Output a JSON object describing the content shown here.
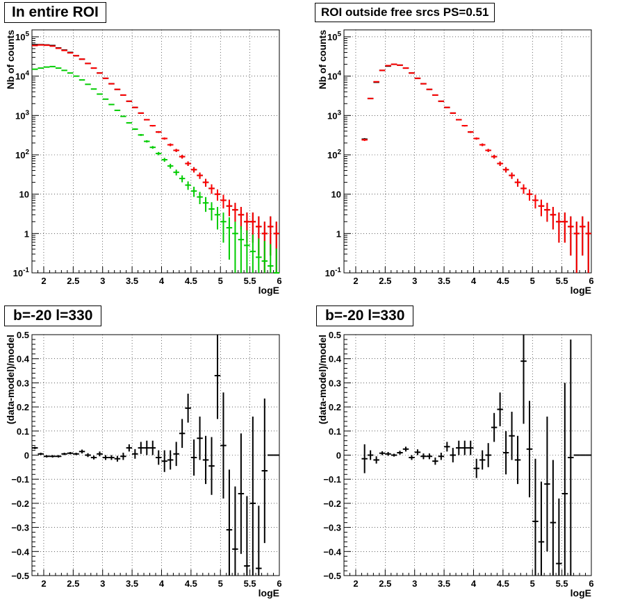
{
  "chart_data": [
    {
      "type": "scatter",
      "title": "In entire ROI",
      "xlabel": "logE",
      "ylabel": "Nb of counts",
      "xlim": [
        1.8,
        6.0
      ],
      "ylim": [
        0.1,
        150000
      ],
      "yscale": "log",
      "grid": true,
      "x_ticks": [
        "2",
        "2.5",
        "3",
        "3.5",
        "4",
        "4.5",
        "5",
        "5.5",
        "6"
      ],
      "y_ticks": [
        "10^-1",
        "1",
        "10",
        "10^2",
        "10^3",
        "10^4",
        "10^5"
      ],
      "series": [
        {
          "color": "#000000",
          "x": [
            1.85,
            1.95,
            2.05,
            2.15,
            2.25,
            2.35,
            2.45,
            2.55,
            2.65,
            2.75,
            2.85,
            2.95,
            3.05,
            3.15,
            3.25,
            3.35,
            3.45,
            3.55,
            3.65,
            3.75,
            3.85,
            3.95,
            4.05,
            4.15,
            4.25,
            4.35,
            4.45,
            4.55,
            4.65,
            4.75,
            4.85,
            4.95,
            5.05,
            5.15,
            5.25,
            5.35,
            5.45,
            5.55,
            5.65,
            5.75,
            5.85,
            5.95
          ],
          "y": [
            63000,
            63000,
            62000,
            60000,
            52000,
            46000,
            40000,
            33000,
            27000,
            21000,
            16000,
            12000,
            8800,
            6400,
            4600,
            3300,
            2300,
            1600,
            1150,
            780,
            550,
            380,
            260,
            180,
            130,
            90,
            60,
            42,
            30,
            20,
            14,
            10,
            7,
            5,
            4,
            3,
            2,
            2,
            1.5,
            1,
            1.5,
            1
          ]
        },
        {
          "color": "#ff0000",
          "x": [
            1.85,
            1.95,
            2.05,
            2.15,
            2.25,
            2.35,
            2.45,
            2.55,
            2.65,
            2.75,
            2.85,
            2.95,
            3.05,
            3.15,
            3.25,
            3.35,
            3.45,
            3.55,
            3.65,
            3.75,
            3.85,
            3.95,
            4.05,
            4.15,
            4.25,
            4.35,
            4.45,
            4.55,
            4.65,
            4.75,
            4.85,
            4.95,
            5.05,
            5.15,
            5.25,
            5.35,
            5.45,
            5.55,
            5.65,
            5.75,
            5.85,
            5.95
          ],
          "y": [
            60000,
            62000,
            61000,
            58000,
            51000,
            45000,
            39000,
            33000,
            27000,
            21000,
            16000,
            12000,
            8800,
            6400,
            4600,
            3300,
            2300,
            1600,
            1150,
            780,
            550,
            380,
            260,
            180,
            130,
            90,
            60,
            42,
            30,
            20,
            14,
            10,
            7,
            5,
            4,
            3,
            2,
            2,
            1.5,
            1,
            1.5,
            1
          ]
        },
        {
          "color": "#00cc00",
          "x": [
            1.85,
            1.95,
            2.05,
            2.15,
            2.25,
            2.35,
            2.45,
            2.55,
            2.65,
            2.75,
            2.85,
            2.95,
            3.05,
            3.15,
            3.25,
            3.35,
            3.45,
            3.55,
            3.65,
            3.75,
            3.85,
            3.95,
            4.05,
            4.15,
            4.25,
            4.35,
            4.45,
            4.55,
            4.65,
            4.75,
            4.85,
            4.95,
            5.05,
            5.15,
            5.25,
            5.35,
            5.45,
            5.55,
            5.65,
            5.75,
            5.85,
            5.95
          ],
          "y": [
            15000,
            16000,
            17000,
            17500,
            16000,
            14000,
            12000,
            10000,
            8000,
            6200,
            4700,
            3500,
            2600,
            1900,
            1350,
            950,
            650,
            450,
            320,
            220,
            155,
            108,
            75,
            52,
            36,
            25,
            17,
            12,
            8.5,
            6,
            4.2,
            3,
            2,
            1.4,
            1,
            0.7,
            0.5,
            0.35,
            0.25,
            0.2,
            0.15,
            0.1
          ]
        }
      ]
    },
    {
      "type": "scatter",
      "title": "ROI outside free srcs PS=0.51",
      "xlabel": "logE",
      "ylabel": "Nb of counts",
      "xlim": [
        1.8,
        6.0
      ],
      "ylim": [
        0.1,
        150000
      ],
      "yscale": "log",
      "grid": true,
      "x_ticks": [
        "2",
        "2.5",
        "3",
        "3.5",
        "4",
        "4.5",
        "5",
        "5.5",
        "6"
      ],
      "y_ticks": [
        "10^-1",
        "1",
        "10",
        "10^2",
        "10^3",
        "10^4",
        "10^5"
      ],
      "series": [
        {
          "color": "#000000",
          "x": [
            2.15,
            2.25,
            2.35,
            2.45,
            2.55,
            2.65,
            2.75,
            2.85,
            2.95,
            3.05,
            3.15,
            3.25,
            3.35,
            3.45,
            3.55,
            3.65,
            3.75,
            3.85,
            3.95,
            4.05,
            4.15,
            4.25,
            4.35,
            4.45,
            4.55,
            4.65,
            4.75,
            4.85,
            4.95,
            5.05,
            5.15,
            5.25,
            5.35,
            5.45,
            5.55,
            5.65,
            5.75,
            5.85,
            5.95
          ],
          "y": [
            250,
            2700,
            7000,
            14000,
            18000,
            20000,
            19000,
            16000,
            12000,
            8800,
            6400,
            4600,
            3300,
            2300,
            1600,
            1150,
            780,
            550,
            380,
            260,
            180,
            130,
            90,
            60,
            42,
            30,
            20,
            14,
            10,
            7,
            5,
            4,
            3,
            2,
            2,
            1.5,
            1,
            1.5,
            1
          ]
        },
        {
          "color": "#ff0000",
          "x": [
            2.15,
            2.25,
            2.35,
            2.45,
            2.55,
            2.65,
            2.75,
            2.85,
            2.95,
            3.05,
            3.15,
            3.25,
            3.35,
            3.45,
            3.55,
            3.65,
            3.75,
            3.85,
            3.95,
            4.05,
            4.15,
            4.25,
            4.35,
            4.45,
            4.55,
            4.65,
            4.75,
            4.85,
            4.95,
            5.05,
            5.15,
            5.25,
            5.35,
            5.45,
            5.55,
            5.65,
            5.75,
            5.85,
            5.95
          ],
          "y": [
            240,
            2700,
            7200,
            14000,
            18500,
            20000,
            19000,
            16000,
            12000,
            8800,
            6400,
            4600,
            3300,
            2300,
            1600,
            1150,
            780,
            550,
            380,
            260,
            180,
            130,
            90,
            60,
            42,
            30,
            20,
            14,
            10,
            7,
            5,
            4,
            3,
            2,
            2,
            1.5,
            1,
            1.5,
            1
          ]
        }
      ]
    },
    {
      "type": "scatter",
      "title": "b=-20 l=330",
      "xlabel": "logE",
      "ylabel": "(data-model)/model",
      "xlim": [
        1.8,
        6.0
      ],
      "ylim": [
        -0.5,
        0.5
      ],
      "grid": true,
      "x_ticks": [
        "2",
        "2.5",
        "3",
        "3.5",
        "4",
        "4.5",
        "5",
        "5.5",
        "6"
      ],
      "y_ticks": [
        "−0.5",
        "−0.4",
        "−0.3",
        "−0.2",
        "−0.1",
        "0",
        "0.1",
        "0.2",
        "0.3",
        "0.4",
        "0.5"
      ],
      "series": [
        {
          "color": "#000000",
          "x": [
            1.85,
            1.95,
            2.05,
            2.15,
            2.25,
            2.35,
            2.45,
            2.55,
            2.65,
            2.75,
            2.85,
            2.95,
            3.05,
            3.15,
            3.25,
            3.35,
            3.45,
            3.55,
            3.65,
            3.75,
            3.85,
            3.95,
            4.05,
            4.15,
            4.25,
            4.35,
            4.45,
            4.55,
            4.65,
            4.75,
            4.85,
            4.95,
            5.05,
            5.15,
            5.25,
            5.35,
            5.45,
            5.55,
            5.65,
            5.75,
            5.85,
            5.95
          ],
          "y": [
            0.03,
            0.005,
            -0.005,
            -0.005,
            -0.005,
            0.005,
            0.008,
            0.005,
            0.015,
            0.0,
            -0.01,
            0.005,
            -0.01,
            -0.01,
            -0.015,
            -0.005,
            0.03,
            0.005,
            0.03,
            0.03,
            0.03,
            -0.01,
            -0.025,
            -0.02,
            0.005,
            0.09,
            0.195,
            -0.01,
            0.07,
            -0.02,
            -0.045,
            0.33,
            0.04,
            -0.31,
            -0.39,
            -0.16,
            -0.46,
            -0.2,
            -0.47,
            -0.065,
            0.0,
            0.0
          ],
          "err": [
            0.005,
            0.005,
            0.005,
            0.005,
            0.005,
            0.005,
            0.005,
            0.005,
            0.008,
            0.008,
            0.008,
            0.01,
            0.01,
            0.01,
            0.012,
            0.015,
            0.015,
            0.02,
            0.025,
            0.03,
            0.03,
            0.03,
            0.045,
            0.04,
            0.05,
            0.06,
            0.06,
            0.075,
            0.09,
            0.1,
            0.12,
            0.18,
            0.22,
            0.25,
            0.26,
            0.25,
            0.29,
            0.36,
            0.26,
            0.3,
            0.0,
            0.0
          ]
        }
      ]
    },
    {
      "type": "scatter",
      "title": "b=-20 l=330",
      "xlabel": "logE",
      "ylabel": "(data-model)/model",
      "xlim": [
        1.8,
        6.0
      ],
      "ylim": [
        -0.5,
        0.5
      ],
      "grid": true,
      "x_ticks": [
        "2",
        "2.5",
        "3",
        "3.5",
        "4",
        "4.5",
        "5",
        "5.5",
        "6"
      ],
      "y_ticks": [
        "−0.5",
        "−0.4",
        "−0.3",
        "−0.2",
        "−0.1",
        "0",
        "0.1",
        "0.2",
        "0.3",
        "0.4",
        "0.5"
      ],
      "series": [
        {
          "color": "#000000",
          "x": [
            2.15,
            2.25,
            2.35,
            2.45,
            2.55,
            2.65,
            2.75,
            2.85,
            2.95,
            3.05,
            3.15,
            3.25,
            3.35,
            3.45,
            3.55,
            3.65,
            3.75,
            3.85,
            3.95,
            4.05,
            4.15,
            4.25,
            4.35,
            4.45,
            4.55,
            4.65,
            4.75,
            4.85,
            4.95,
            5.05,
            5.15,
            5.25,
            5.35,
            5.45,
            5.55,
            5.65,
            5.75,
            5.85,
            5.95
          ],
          "y": [
            -0.015,
            0.0,
            -0.02,
            0.008,
            0.005,
            0.0,
            0.01,
            0.025,
            -0.01,
            0.012,
            -0.005,
            -0.005,
            -0.025,
            -0.005,
            0.035,
            0.0,
            0.03,
            0.03,
            0.03,
            -0.055,
            -0.02,
            0.0,
            0.115,
            0.19,
            0.01,
            0.08,
            -0.02,
            0.39,
            0.025,
            -0.275,
            -0.36,
            -0.12,
            -0.28,
            -0.45,
            -0.16,
            -0.01,
            0.0,
            0.0,
            0.0
          ],
          "err": [
            0.06,
            0.02,
            0.015,
            0.008,
            0.008,
            0.006,
            0.008,
            0.01,
            0.01,
            0.012,
            0.012,
            0.012,
            0.015,
            0.015,
            0.02,
            0.03,
            0.03,
            0.03,
            0.03,
            0.04,
            0.04,
            0.05,
            0.06,
            0.07,
            0.09,
            0.1,
            0.1,
            0.26,
            0.2,
            0.26,
            0.25,
            0.28,
            0.26,
            0.27,
            0.46,
            0.49,
            0.0,
            0.0,
            0.0
          ]
        }
      ]
    }
  ]
}
